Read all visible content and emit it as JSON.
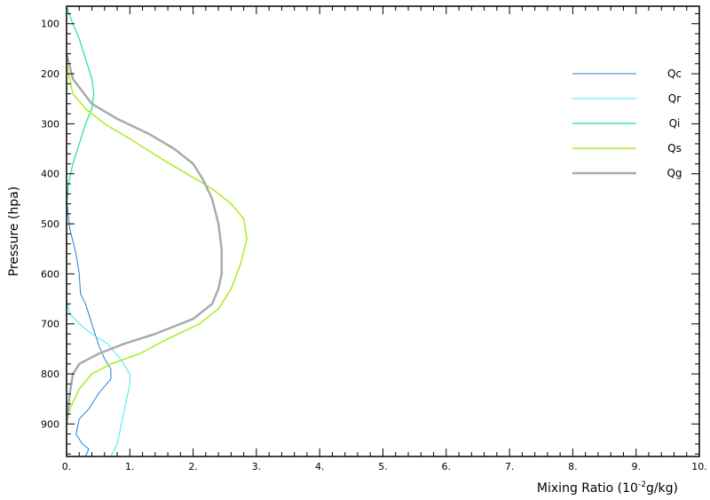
{
  "chart_data": {
    "type": "line",
    "title": "",
    "xlabel": "Mixing Ratio (10",
    "xlabel_exp": "-2",
    "xlabel_tail": "g/kg)",
    "ylabel": "Pressure  (hpa)",
    "xlim": [
      0,
      10
    ],
    "ylim": [
      965,
      65
    ],
    "y_inverted": true,
    "grid": false,
    "legend_position": "top-right",
    "x_ticks": [
      0,
      1,
      2,
      3,
      4,
      5,
      6,
      7,
      8,
      9,
      10
    ],
    "x_tick_labels": [
      "0.",
      "1.",
      "2.",
      "3.",
      "4.",
      "5.",
      "6.",
      "7.",
      "8.",
      "9.",
      "10."
    ],
    "y_ticks": [
      100,
      200,
      300,
      400,
      500,
      600,
      700,
      800,
      900
    ],
    "y_tick_labels": [
      "100",
      "200",
      "300",
      "400",
      "500",
      "600",
      "700",
      "800",
      "900"
    ],
    "series": [
      {
        "name": "Qc",
        "color": "#1f7fe0",
        "width": 1,
        "points": [
          [
            0,
            450
          ],
          [
            0.05,
            510
          ],
          [
            0.15,
            560
          ],
          [
            0.2,
            600
          ],
          [
            0.22,
            640
          ],
          [
            0.3,
            660
          ],
          [
            0.4,
            700
          ],
          [
            0.5,
            740
          ],
          [
            0.6,
            770
          ],
          [
            0.7,
            790
          ],
          [
            0.7,
            810
          ],
          [
            0.5,
            840
          ],
          [
            0.35,
            870
          ],
          [
            0.2,
            890
          ],
          [
            0.15,
            920
          ],
          [
            0.25,
            940
          ],
          [
            0.35,
            950
          ],
          [
            0.3,
            965
          ]
        ]
      },
      {
        "name": "Qr",
        "color": "#44e8f0",
        "width": 1,
        "points": [
          [
            0,
            560
          ],
          [
            0,
            650
          ],
          [
            0.05,
            680
          ],
          [
            0.2,
            700
          ],
          [
            0.4,
            720
          ],
          [
            0.65,
            740
          ],
          [
            0.85,
            770
          ],
          [
            1.0,
            800
          ],
          [
            1.0,
            820
          ],
          [
            0.95,
            850
          ],
          [
            0.9,
            880
          ],
          [
            0.85,
            910
          ],
          [
            0.8,
            940
          ],
          [
            0.7,
            965
          ]
        ]
      },
      {
        "name": "Qi",
        "color": "#1de39a",
        "width": 1.2,
        "points": [
          [
            0,
            65
          ],
          [
            0.1,
            100
          ],
          [
            0.2,
            130
          ],
          [
            0.3,
            170
          ],
          [
            0.4,
            210
          ],
          [
            0.43,
            240
          ],
          [
            0.4,
            270
          ],
          [
            0.3,
            300
          ],
          [
            0.2,
            340
          ],
          [
            0.1,
            380
          ],
          [
            0.03,
            420
          ],
          [
            0,
            470
          ],
          [
            0,
            965
          ]
        ]
      },
      {
        "name": "Qs",
        "color": "#aaee22",
        "width": 1.5,
        "points": [
          [
            0,
            180
          ],
          [
            0.1,
            240
          ],
          [
            0.3,
            270
          ],
          [
            0.6,
            300
          ],
          [
            1.0,
            330
          ],
          [
            1.5,
            370
          ],
          [
            1.9,
            400
          ],
          [
            2.3,
            430
          ],
          [
            2.6,
            460
          ],
          [
            2.8,
            490
          ],
          [
            2.85,
            530
          ],
          [
            2.75,
            580
          ],
          [
            2.6,
            630
          ],
          [
            2.4,
            670
          ],
          [
            2.1,
            700
          ],
          [
            1.6,
            730
          ],
          [
            1.15,
            760
          ],
          [
            0.7,
            780
          ],
          [
            0.4,
            800
          ],
          [
            0.2,
            830
          ],
          [
            0.05,
            870
          ],
          [
            0,
            900
          ]
        ]
      },
      {
        "name": "Qg",
        "color": "#aaaaaa",
        "width": 2.5,
        "points": [
          [
            0,
            160
          ],
          [
            0.1,
            210
          ],
          [
            0.4,
            260
          ],
          [
            0.8,
            290
          ],
          [
            1.3,
            320
          ],
          [
            1.7,
            350
          ],
          [
            2.0,
            380
          ],
          [
            2.15,
            410
          ],
          [
            2.3,
            450
          ],
          [
            2.4,
            500
          ],
          [
            2.45,
            550
          ],
          [
            2.45,
            600
          ],
          [
            2.4,
            630
          ],
          [
            2.3,
            660
          ],
          [
            2.0,
            690
          ],
          [
            1.4,
            720
          ],
          [
            0.9,
            740
          ],
          [
            0.5,
            760
          ],
          [
            0.2,
            780
          ],
          [
            0.1,
            800
          ],
          [
            0.05,
            840
          ],
          [
            0,
            900
          ]
        ]
      }
    ]
  }
}
